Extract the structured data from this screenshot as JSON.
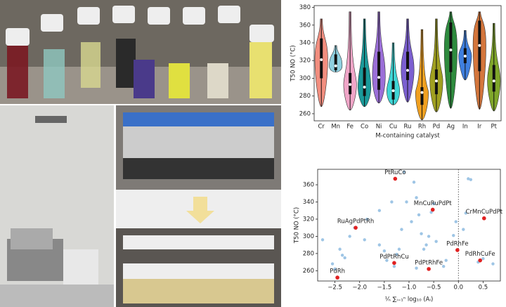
{
  "chart_data": [
    {
      "type": "violin",
      "y_label": "T50 NO (°C)",
      "x_label": "M-containing catalyst",
      "categories": [
        "Cr",
        "Mn",
        "Fe",
        "Co",
        "Ni",
        "Cu",
        "Ru",
        "Rh",
        "Pd",
        "Ag",
        "In",
        "Ir",
        "Pt"
      ],
      "min": [
        268,
        307,
        264,
        268,
        272,
        270,
        273,
        253,
        262,
        266,
        298,
        265,
        263
      ],
      "q1": [
        300,
        309,
        282,
        280,
        287,
        276,
        298,
        270,
        282,
        307,
        317,
        308,
        285
      ],
      "median": [
        321,
        314,
        293,
        290,
        301,
        286,
        309,
        284,
        297,
        332,
        325,
        337,
        297
      ],
      "q3": [
        345,
        327,
        306,
        312,
        330,
        297,
        330,
        290,
        310,
        363,
        334,
        365,
        315
      ],
      "max": [
        367,
        337,
        375,
        367,
        375,
        340,
        367,
        355,
        367,
        375,
        354,
        375,
        362
      ],
      "colors": [
        "#f28e7f",
        "#8fd0e0",
        "#f0a6c8",
        "#1a9a9a",
        "#9b6fd8",
        "#3fd5d5",
        "#7b5fd0",
        "#f0a020",
        "#a0a020",
        "#2e8b3e",
        "#3f7fdf",
        "#d4763c",
        "#7fa62a"
      ],
      "ylim": [
        252,
        382
      ],
      "yticks": [
        260,
        280,
        300,
        320,
        340,
        360,
        380
      ]
    },
    {
      "type": "scatter",
      "y_label": "T50 NO (°C)",
      "x_label": "¹⁄ₙ ∑ᵢ₌₁ⁿ log₁₀ (Aᵢ)",
      "x": [
        -2.75,
        -2.55,
        -2.5,
        -2.4,
        -2.35,
        -2.3,
        -2.2,
        -2.1,
        -1.9,
        -1.85,
        -1.6,
        -1.5,
        -1.45,
        -1.35,
        -1.3,
        -1.25,
        -1.2,
        -1.15,
        -1.1,
        -1.05,
        -0.95,
        -0.9,
        -0.85,
        -0.8,
        -0.75,
        -0.7,
        -0.65,
        -0.6,
        -0.55,
        -0.5,
        -0.45,
        -0.3,
        -0.25,
        -0.1,
        -0.05,
        0.1,
        0.15,
        0.2,
        0.25,
        0.4,
        0.5,
        0.7,
        -1.6,
        -0.85
      ],
      "y": [
        296,
        268,
        262,
        285,
        278,
        275,
        300,
        310,
        296,
        320,
        290,
        283,
        272,
        340,
        265,
        279,
        285,
        308,
        375,
        340,
        317,
        363,
        345,
        325,
        303,
        285,
        290,
        300,
        328,
        338,
        294,
        265,
        272,
        301,
        317,
        308,
        327,
        367,
        366,
        270,
        274,
        268,
        330,
        263
      ],
      "color": "#9ec5e5",
      "highlight": {
        "labels": [
          "PtRuCo",
          "MnCuRuPdPt",
          "CrMnCuPdPt",
          "RuAgPdPtRh",
          "PdRhFe",
          "PdPtRhCu",
          "PdRhCuFe",
          "PdPtRhFe",
          "PdRh"
        ],
        "x": [
          -1.28,
          -0.52,
          0.52,
          -2.08,
          -0.02,
          -1.3,
          0.44,
          -0.6,
          -2.45
        ],
        "y": [
          367,
          331,
          321,
          310,
          284,
          269,
          272,
          262,
          252
        ],
        "color": "#e02020"
      },
      "vline": 0,
      "xlim": [
        -2.85,
        0.85
      ],
      "ylim": [
        248,
        378
      ],
      "xticks": [
        {
          "value": -2.5,
          "label": "−2.5"
        },
        {
          "value": -2.0,
          "label": "−2.0"
        },
        {
          "value": -1.5,
          "label": "−1.5"
        },
        {
          "value": -1.0,
          "label": "−1.0"
        },
        {
          "value": -0.5,
          "label": "−0.5"
        },
        {
          "value": 0,
          "label": "0.0"
        },
        0.5
      ],
      "yticks": [
        260,
        280,
        300,
        320,
        340,
        360
      ]
    }
  ]
}
